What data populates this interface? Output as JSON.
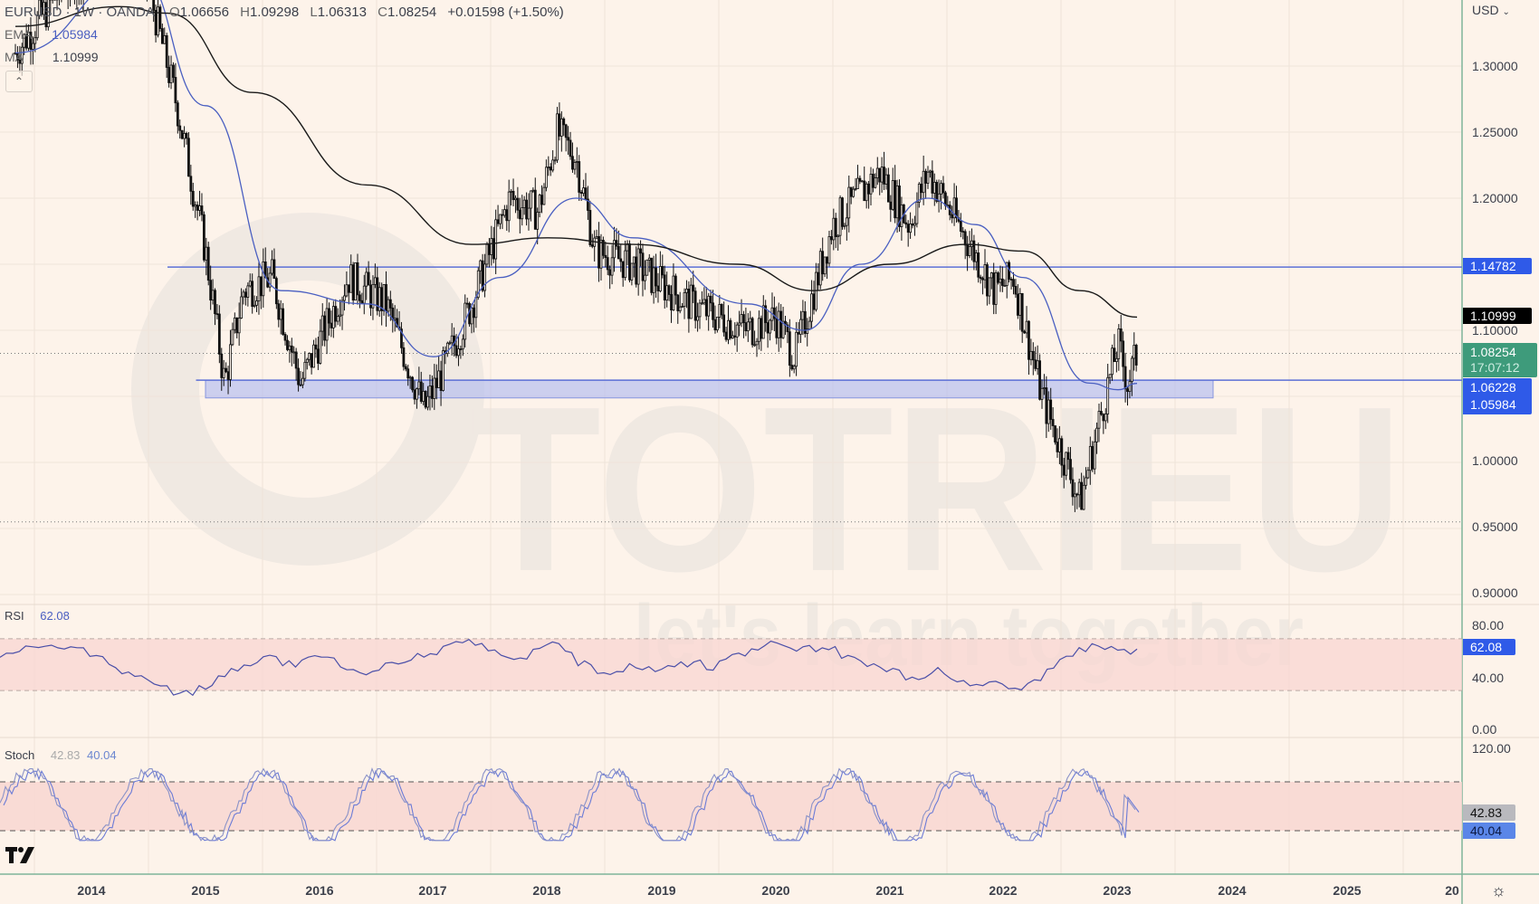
{
  "header": {
    "symbol": "EURUSD",
    "interval": "1W",
    "exchange": "OANDA",
    "title": "EURUSD · 1W · OANDA",
    "ohlc": {
      "open_label": "O",
      "open": "1.06656",
      "high_label": "H",
      "high": "1.09298",
      "low_label": "L",
      "low": "1.06313",
      "close_label": "C",
      "close": "1.08254",
      "change": "+0.01598 (+1.50%)"
    },
    "ema_label": "EMA",
    "ema_value": "1.05984",
    "ma_label": "MA",
    "ma_value": "1.10999"
  },
  "price_axis": {
    "currency": "USD",
    "ticks": [
      "1.30000",
      "1.25000",
      "1.20000",
      "1.10000",
      "1.00000",
      "0.95000",
      "0.90000"
    ],
    "tags": {
      "resistance": "1.14782",
      "ma": "1.10999",
      "last_price": "1.08254",
      "countdown": "17:07:12",
      "support": "1.06228",
      "ema": "1.05984"
    }
  },
  "rsi": {
    "label": "RSI",
    "value": "62.08",
    "ticks": [
      "80.00",
      "40.00",
      "0.00"
    ]
  },
  "stoch": {
    "label": "Stoch",
    "k_value": "42.83",
    "d_value": "40.04",
    "ticks": [
      "120.00"
    ]
  },
  "time_axis": {
    "labels": [
      "2014",
      "2015",
      "2016",
      "2017",
      "2018",
      "2019",
      "2020",
      "2021",
      "2022",
      "2023",
      "2024",
      "2025",
      "20"
    ]
  },
  "watermark": {
    "brand": "TOTRIEU",
    "tagline": "let's learn together"
  },
  "colors": {
    "background": "#fdf3ea",
    "candle": "#111111",
    "ema": "#4a5fc1",
    "ma": "#1a1a1a",
    "level_line": "#5b6fd6",
    "zone_fill": "#b7bff0",
    "tag_blue": "#2f5ae8",
    "tag_green": "#3e9b7b",
    "tag_black": "#000000",
    "rsi_line": "#4a4fa8",
    "band_fill": "#f8d6d1",
    "stoch_k": "#8a92c8",
    "stoch_d": "#6b7bd6",
    "tag_gray": "#b9b9be",
    "tag_lightblue": "#5a86e8"
  },
  "chart_data": {
    "type": "candlestick",
    "title": "EURUSD 1W OANDA",
    "xlabel": "",
    "ylabel": "USD",
    "ylim": [
      0.88,
      1.38
    ],
    "grid": true,
    "x_range": [
      "2013-05",
      "2025-12"
    ],
    "close_path": [
      {
        "t": "2013-05",
        "v": 1.31
      },
      {
        "t": "2013-10",
        "v": 1.36
      },
      {
        "t": "2014-05",
        "v": 1.39
      },
      {
        "t": "2014-07",
        "v": 1.36
      },
      {
        "t": "2014-10",
        "v": 1.27
      },
      {
        "t": "2015-01",
        "v": 1.16
      },
      {
        "t": "2015-03",
        "v": 1.06
      },
      {
        "t": "2015-05",
        "v": 1.13
      },
      {
        "t": "2015-08",
        "v": 1.14
      },
      {
        "t": "2015-11",
        "v": 1.06
      },
      {
        "t": "2016-04",
        "v": 1.14
      },
      {
        "t": "2016-08",
        "v": 1.12
      },
      {
        "t": "2016-12",
        "v": 1.04
      },
      {
        "t": "2017-02",
        "v": 1.07
      },
      {
        "t": "2017-05",
        "v": 1.12
      },
      {
        "t": "2017-09",
        "v": 1.2
      },
      {
        "t": "2017-12",
        "v": 1.19
      },
      {
        "t": "2018-02",
        "v": 1.25
      },
      {
        "t": "2018-04",
        "v": 1.23
      },
      {
        "t": "2018-06",
        "v": 1.16
      },
      {
        "t": "2018-10",
        "v": 1.15
      },
      {
        "t": "2019-04",
        "v": 1.12
      },
      {
        "t": "2019-10",
        "v": 1.1
      },
      {
        "t": "2020-01",
        "v": 1.11
      },
      {
        "t": "2020-03",
        "v": 1.08
      },
      {
        "t": "2020-07",
        "v": 1.18
      },
      {
        "t": "2020-12",
        "v": 1.22
      },
      {
        "t": "2021-03",
        "v": 1.18
      },
      {
        "t": "2021-05",
        "v": 1.22
      },
      {
        "t": "2021-09",
        "v": 1.17
      },
      {
        "t": "2021-12",
        "v": 1.13
      },
      {
        "t": "2022-02",
        "v": 1.14
      },
      {
        "t": "2022-05",
        "v": 1.05
      },
      {
        "t": "2022-07",
        "v": 1.01
      },
      {
        "t": "2022-09",
        "v": 0.97
      },
      {
        "t": "2022-11",
        "v": 1.03
      },
      {
        "t": "2023-01",
        "v": 1.09
      },
      {
        "t": "2023-02",
        "v": 1.06
      },
      {
        "t": "2023-03",
        "v": 1.0825
      }
    ],
    "ema_path": [
      {
        "t": "2013-05",
        "v": 1.31
      },
      {
        "t": "2014-06",
        "v": 1.37
      },
      {
        "t": "2015-01",
        "v": 1.27
      },
      {
        "t": "2015-09",
        "v": 1.13
      },
      {
        "t": "2016-06",
        "v": 1.12
      },
      {
        "t": "2017-01",
        "v": 1.08
      },
      {
        "t": "2017-08",
        "v": 1.14
      },
      {
        "t": "2018-04",
        "v": 1.2
      },
      {
        "t": "2018-10",
        "v": 1.17
      },
      {
        "t": "2019-10",
        "v": 1.12
      },
      {
        "t": "2020-04",
        "v": 1.1
      },
      {
        "t": "2020-10",
        "v": 1.15
      },
      {
        "t": "2021-05",
        "v": 1.2
      },
      {
        "t": "2021-10",
        "v": 1.18
      },
      {
        "t": "2022-03",
        "v": 1.14
      },
      {
        "t": "2022-10",
        "v": 1.06
      },
      {
        "t": "2023-01",
        "v": 1.055
      },
      {
        "t": "2023-03",
        "v": 1.0598
      }
    ],
    "ma_path": [
      {
        "t": "2013-05",
        "v": 1.33
      },
      {
        "t": "2014-04",
        "v": 1.345
      },
      {
        "t": "2014-09",
        "v": 1.34
      },
      {
        "t": "2015-06",
        "v": 1.28
      },
      {
        "t": "2016-06",
        "v": 1.21
      },
      {
        "t": "2017-05",
        "v": 1.165
      },
      {
        "t": "2018-01",
        "v": 1.17
      },
      {
        "t": "2018-10",
        "v": 1.165
      },
      {
        "t": "2019-09",
        "v": 1.15
      },
      {
        "t": "2020-05",
        "v": 1.13
      },
      {
        "t": "2021-01",
        "v": 1.15
      },
      {
        "t": "2021-09",
        "v": 1.165
      },
      {
        "t": "2022-03",
        "v": 1.16
      },
      {
        "t": "2022-09",
        "v": 1.13
      },
      {
        "t": "2023-03",
        "v": 1.11
      }
    ],
    "horizontal_levels": [
      {
        "name": "resistance",
        "value": 1.14782,
        "from": "2014-09"
      },
      {
        "name": "last-price",
        "value": 1.08254,
        "style": "dotted"
      },
      {
        "name": "low-reference",
        "value": 0.955,
        "style": "dotted"
      }
    ],
    "zone": {
      "top": 1.06228,
      "bottom": 1.0488,
      "from": "2015-01",
      "to": "2023-11"
    },
    "rsi": {
      "value": 62.08,
      "upper_band": 70,
      "lower_band": 30,
      "range": [
        0,
        100
      ],
      "path": [
        58,
        62,
        66,
        60,
        63,
        57,
        49,
        40,
        34,
        30,
        28,
        36,
        46,
        52,
        55,
        50,
        54,
        58,
        46,
        39,
        48,
        55,
        57,
        62,
        69,
        66,
        58,
        54,
        64,
        67,
        52,
        45,
        45,
        50,
        48,
        50,
        52,
        47,
        58,
        60,
        66,
        61,
        63,
        64,
        55,
        52,
        48,
        40,
        42,
        46,
        36,
        37,
        32,
        34,
        40,
        55,
        62,
        66,
        58,
        62.08
      ]
    },
    "stoch": {
      "k": 42.83,
      "d": 40.04,
      "upper_band": 80,
      "lower_band": 20
    }
  }
}
